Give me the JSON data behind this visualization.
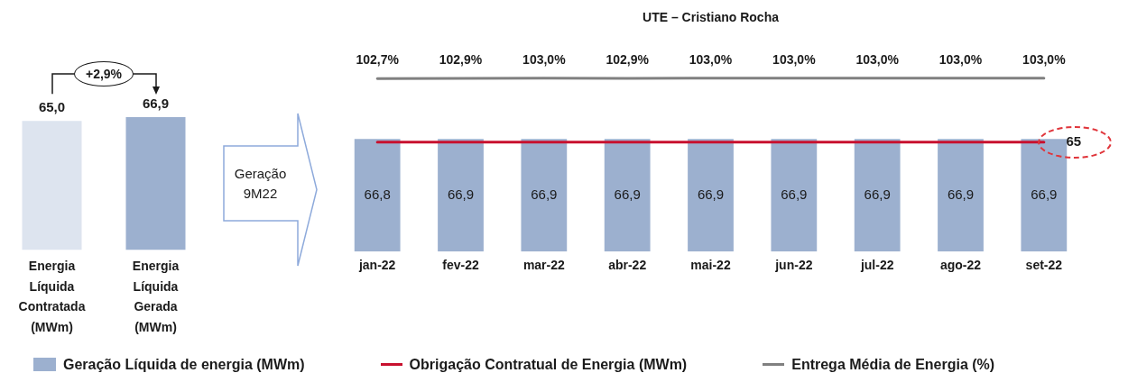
{
  "chart_data": [
    {
      "type": "bar",
      "categories": [
        "Energia Líquida Contratada (MWm)",
        "Energia Líquida Gerada (MWm)"
      ],
      "values": [
        65.0,
        66.9
      ],
      "colors": [
        "#dde4ef",
        "#9cb0cf"
      ],
      "value_labels": [
        "65,0",
        "66,9"
      ],
      "annotations": [
        "+2,9%",
        "Geração 9M22"
      ],
      "tick_labels": "x"
    },
    {
      "type": "bar",
      "title": "UTE – Cristiano Rocha",
      "categories": [
        "jan-22",
        "fev-22",
        "mar-22",
        "abr-22",
        "mai-22",
        "jun-22",
        "jul-22",
        "ago-22",
        "set-22"
      ],
      "series": [
        {
          "name": "Geração Líquida de energia (MWm)",
          "color": "#9cb0cf",
          "values": [
            66.8,
            66.9,
            66.9,
            66.9,
            66.9,
            66.9,
            66.9,
            66.9,
            66.9
          ],
          "value_labels": [
            "66,8",
            "66,9",
            "66,9",
            "66,9",
            "66,9",
            "66,9",
            "66,9",
            "66,9",
            "66,9"
          ]
        },
        {
          "name": "Obrigação Contratual de Energia (MWm)",
          "type": "line",
          "color": "#c8102e",
          "values": [
            65,
            65,
            65,
            65,
            65,
            65,
            65,
            65,
            65
          ],
          "value_labels": [
            null,
            null,
            null,
            null,
            null,
            null,
            null,
            null,
            "65"
          ]
        },
        {
          "name": "Entrega Média de Energia (%)",
          "type": "line",
          "color": "#808080",
          "values": [
            102.7,
            102.9,
            103.0,
            102.9,
            103.0,
            103.0,
            103.0,
            103.0,
            103.0
          ],
          "value_labels": [
            "102,7%",
            "102,9%",
            "103,0%",
            "102,9%",
            "103,0%",
            "103,0%",
            "103,0%",
            "103,0%",
            "103,0%"
          ]
        }
      ],
      "legend": "bottom",
      "tick_labels": "x"
    }
  ]
}
